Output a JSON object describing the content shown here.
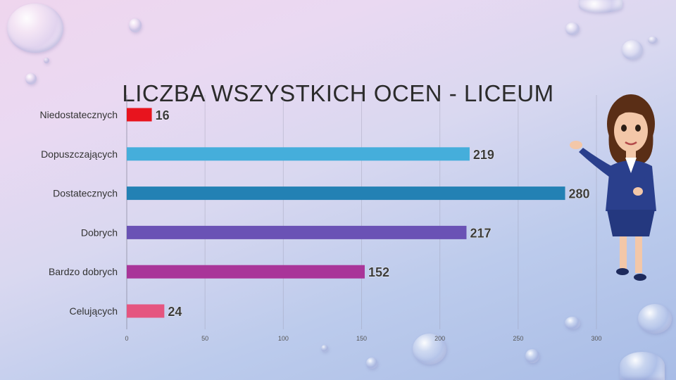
{
  "slide": {
    "title": "LICZBA WSZYSTKICH OCEN - LICEUM"
  },
  "chart_data": {
    "type": "bar",
    "orientation": "horizontal",
    "title": "LICZBA WSZYSTKICH OCEN - LICEUM",
    "categories": [
      "Niedostatecznych",
      "Dopuszczających",
      "Dostatecznych",
      "Dobrych",
      "Bardzo dobrych",
      "Celujących"
    ],
    "values": [
      16,
      219,
      280,
      217,
      152,
      24
    ],
    "colors": [
      "#e8141e",
      "#45aedb",
      "#2381b4",
      "#6a52b5",
      "#a93599",
      "#e55580"
    ],
    "xlim": [
      0,
      300
    ],
    "xticks": [
      0,
      50,
      100,
      150,
      200,
      250,
      300
    ],
    "grid": true,
    "data_labels": true,
    "legend": "none"
  },
  "decor": {
    "character": "presenter-character",
    "background": "water-drops"
  }
}
